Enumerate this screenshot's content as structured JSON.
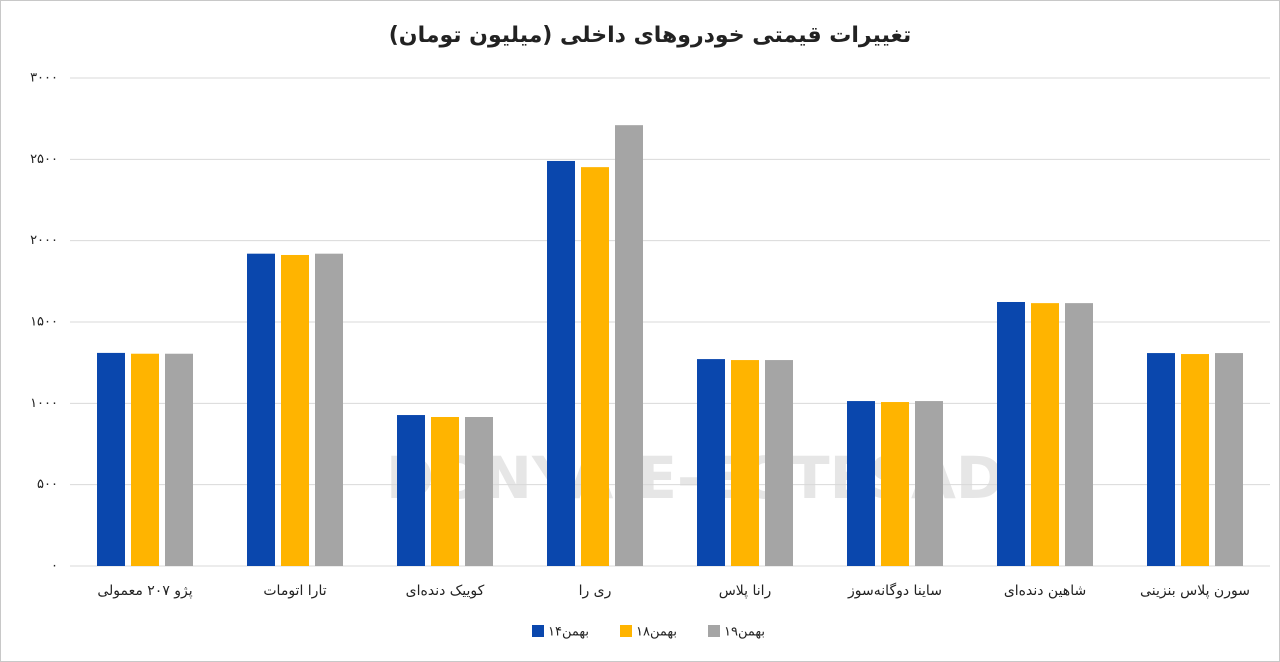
{
  "chart_data": {
    "type": "bar",
    "title": "تغییرات قیمتی خودروهای داخلی (میلیون تومان)",
    "watermark": "DONYA-E-EQTESAD",
    "categories": [
      "پژو ۲۰۷ معمولی",
      "تارا اتومات",
      "کوییک دنده‌ای",
      "ری را",
      "رانا پلاس",
      "ساینا دوگانه‌سوز",
      "شاهین دنده‌ای",
      "سورن پلاس بنزینی"
    ],
    "series": [
      {
        "name": "۱۴بهمن",
        "color": "#0a47ad",
        "values": [
          1310,
          1920,
          928,
          2490,
          1272,
          1014,
          1623,
          1309
        ]
      },
      {
        "name": "۱۸بهمن",
        "color": "#ffb400",
        "values": [
          1305,
          1912,
          916,
          2452,
          1266,
          1008,
          1616,
          1303
        ]
      },
      {
        "name": "۱۹بهمن",
        "color": "#a5a5a5",
        "values": [
          1305,
          1920,
          916,
          2710,
          1266,
          1014,
          1616,
          1309
        ]
      }
    ],
    "ylim": [
      0,
      3000
    ],
    "yticks": [
      {
        "value": 0,
        "label": "۰"
      },
      {
        "value": 500,
        "label": "۵۰۰"
      },
      {
        "value": 1000,
        "label": "۱۰۰۰"
      },
      {
        "value": 1500,
        "label": "۱۵۰۰"
      },
      {
        "value": 2000,
        "label": "۲۰۰۰"
      },
      {
        "value": 2500,
        "label": "۲۵۰۰"
      },
      {
        "value": 3000,
        "label": "۳۰۰۰"
      }
    ],
    "grid": true
  }
}
